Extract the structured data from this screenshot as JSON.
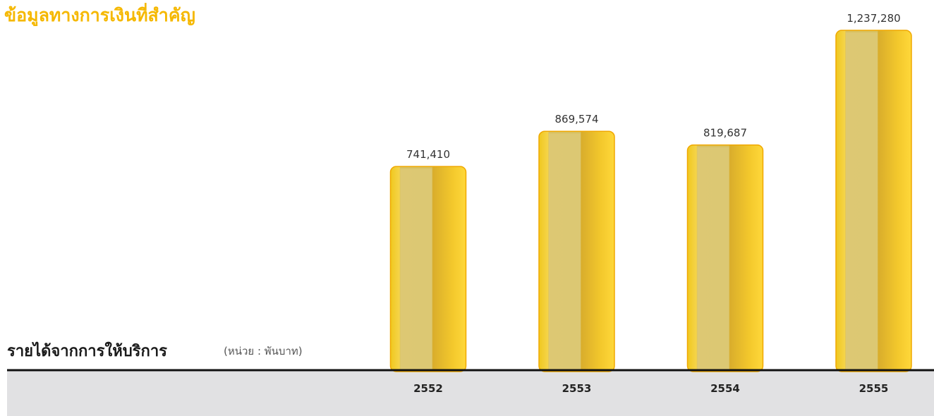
{
  "header": {
    "title": "ข้อมูลทางการเงินที่สำคัญ"
  },
  "colors": {
    "accent": "#f5b800",
    "bar": "#f2c928",
    "bar_edge": "#f0a800",
    "axis": "#111111",
    "footer_band": "#e1e1e3"
  },
  "chart_data": {
    "type": "bar",
    "title": "รายได้จากการให้บริการ",
    "unit": "(หน่วย : พันบาท)",
    "categories": [
      "2552",
      "2553",
      "2554",
      "2555"
    ],
    "values": [
      741410,
      869574,
      819687,
      1237280
    ],
    "value_labels": [
      "741,410",
      "869,574",
      "819,687",
      "1,237,280"
    ],
    "ylim": [
      0,
      1237280
    ],
    "grid": false,
    "legend": "none"
  }
}
